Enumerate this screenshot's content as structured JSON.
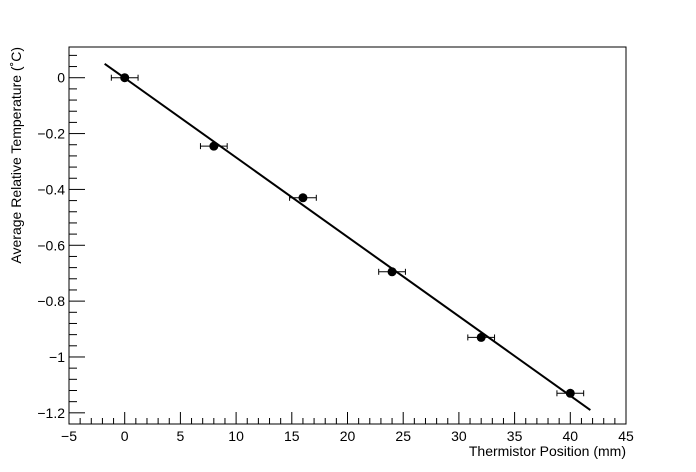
{
  "chart_data": {
    "type": "scatter",
    "title": "",
    "xlabel": "Thermistor Position (mm)",
    "ylabel": "Average Relative Temperature (˚C)",
    "xlim": [
      -5,
      45
    ],
    "ylim": [
      -1.24,
      0.11
    ],
    "x_ticks": [
      -5,
      0,
      5,
      10,
      15,
      20,
      25,
      30,
      35,
      40,
      45
    ],
    "x_tick_labels": [
      "−5",
      "0",
      "5",
      "10",
      "15",
      "20",
      "25",
      "30",
      "35",
      "40",
      "45"
    ],
    "y_ticks": [
      0,
      -0.2,
      -0.4,
      -0.6,
      -0.8,
      -1,
      -1.2
    ],
    "y_tick_labels": [
      "0",
      "−0.2",
      "−0.4",
      "−0.6",
      "−0.8",
      "−1",
      "−1.2"
    ],
    "grid": false,
    "series": [
      {
        "x": [
          0,
          8,
          16,
          24,
          32,
          40
        ],
        "y": [
          0,
          -0.245,
          -0.43,
          -0.695,
          -0.93,
          -1.13
        ],
        "x_error": [
          1.2,
          1.2,
          1.2,
          1.2,
          1.2,
          1.2
        ],
        "marker_color": "#000000"
      }
    ],
    "fit_line": {
      "x": [
        -1.8,
        41.8
      ],
      "y": [
        0.05,
        -1.19
      ],
      "color": "#000000"
    }
  }
}
